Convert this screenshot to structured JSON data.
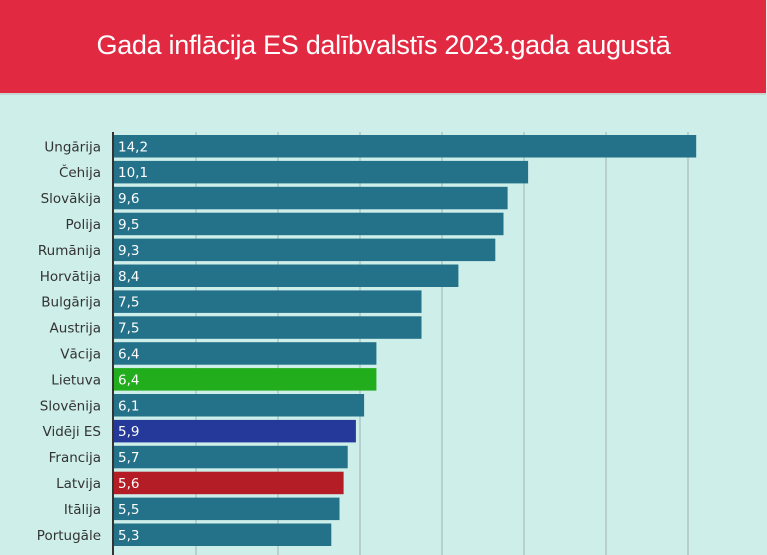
{
  "title": "Gada inflācija ES dalībvalstīs 2023.gada augustā",
  "colors": {
    "header": "#e12a42",
    "background": "#cdeee9",
    "bar_default": "#24718a",
    "bar_lietuva": "#22ad1c",
    "bar_eu": "#25399a",
    "bar_latvia": "#b41d26",
    "grid": "#9fb1b3",
    "axis": "#333333"
  },
  "chart_data": {
    "type": "bar",
    "orientation": "horizontal",
    "title": "Gada inflācija ES dalībvalstīs 2023.gada augustā",
    "categories": [
      "Ungārija",
      "Čehija",
      "Slovākija",
      "Polija",
      "Rumānija",
      "Horvātija",
      "Bulgārija",
      "Austrija",
      "Vācija",
      "Lietuva",
      "Slovēnija",
      "Vidēji ES",
      "Francija",
      "Latvija",
      "Itālija",
      "Portugāle"
    ],
    "values": [
      14.2,
      10.1,
      9.6,
      9.5,
      9.3,
      8.4,
      7.5,
      7.5,
      6.4,
      6.4,
      6.1,
      5.9,
      5.7,
      5.6,
      5.5,
      5.3
    ],
    "value_labels": [
      "14,2",
      "10,1",
      "9,6",
      "9,5",
      "9,3",
      "8,4",
      "7,5",
      "7,5",
      "6,4",
      "6,4",
      "6,1",
      "5,9",
      "5,7",
      "5,6",
      "5,5",
      "5,3"
    ],
    "highlight": {
      "Lietuva": "#22ad1c",
      "Vidēji ES": "#25399a",
      "Latvija": "#b41d26"
    },
    "xlim": [
      0,
      14
    ],
    "grid": true,
    "x_tick_labels_visible": false
  }
}
